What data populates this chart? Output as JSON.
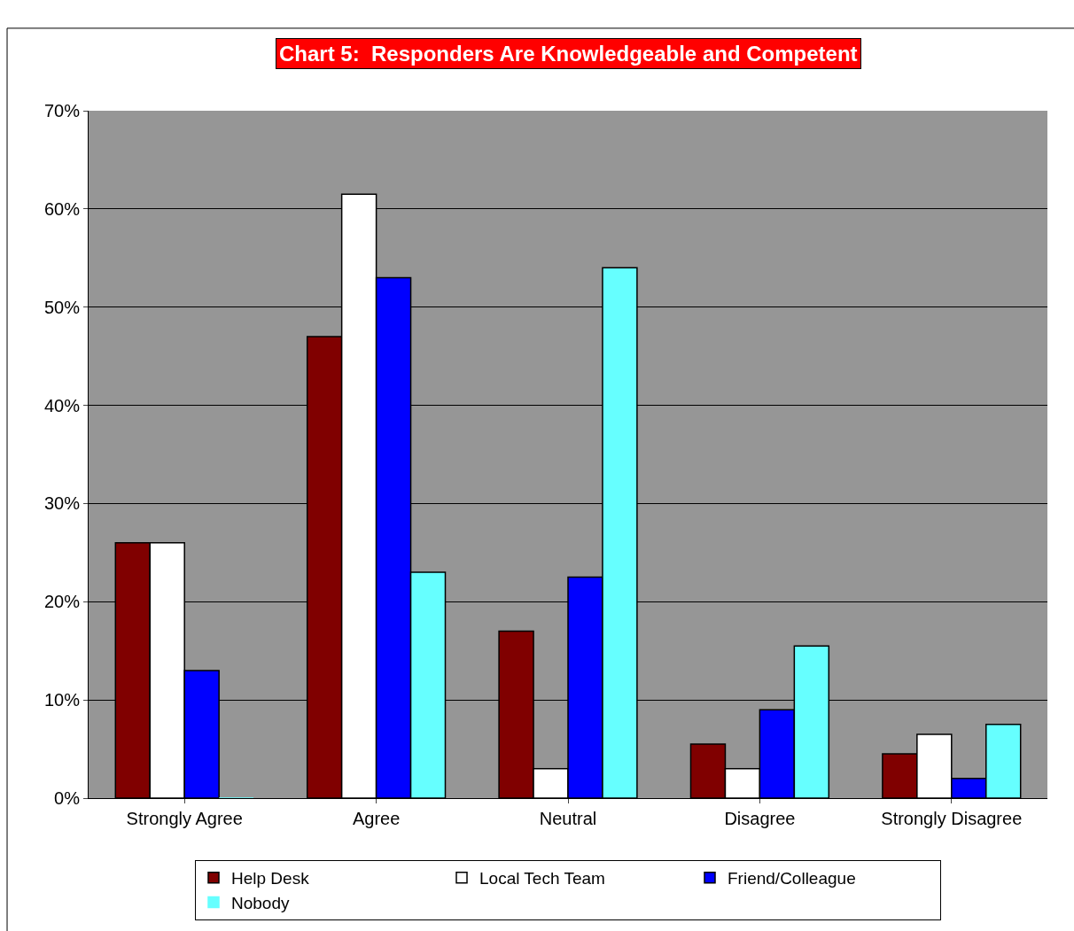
{
  "chart_data": {
    "type": "bar",
    "title": "Chart 5:  Responders Are Knowledgeable and Competent",
    "categories": [
      "Strongly Agree",
      "Agree",
      "Neutral",
      "Disagree",
      "Strongly Disagree"
    ],
    "series": [
      {
        "name": "Help Desk",
        "color": "#800000",
        "values": [
          26,
          47,
          17,
          5.5,
          4.5
        ]
      },
      {
        "name": "Local Tech Team",
        "color": "#ffffff",
        "values": [
          26,
          61.5,
          3,
          3,
          6.5
        ]
      },
      {
        "name": "Friend/Colleague",
        "color": "#0000ff",
        "values": [
          13,
          53,
          22.5,
          9,
          2
        ]
      },
      {
        "name": "Nobody",
        "color": "#66ffff",
        "values": [
          0,
          23,
          54,
          15.5,
          7.5
        ]
      }
    ],
    "ylim": [
      0,
      70
    ],
    "yticks": [
      {
        "value": 0,
        "label": "0%"
      },
      {
        "value": 10,
        "label": "10%"
      },
      {
        "value": 20,
        "label": "20%"
      },
      {
        "value": 30,
        "label": "30%"
      },
      {
        "value": 40,
        "label": "40%"
      },
      {
        "value": 50,
        "label": "50%"
      },
      {
        "value": 60,
        "label": "60%"
      },
      {
        "value": 70,
        "label": "70%"
      }
    ],
    "grid": "y",
    "legend": "bottom"
  }
}
